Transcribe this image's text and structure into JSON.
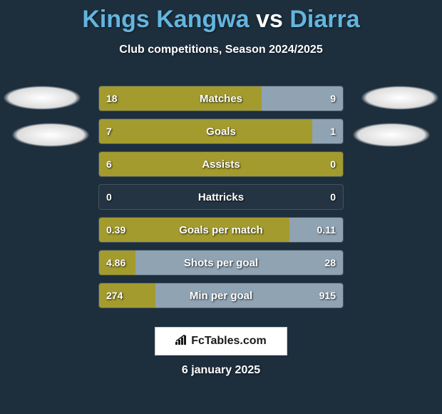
{
  "title": {
    "player1": "Kings Kangwa",
    "vs": "vs",
    "player2": "Diarra",
    "player1_color": "#63b5de",
    "vs_color": "#ffffff",
    "player2_color": "#63b5de",
    "fontsize": 34
  },
  "subtitle": "Club competitions, Season 2024/2025",
  "background_color": "#1d2e3d",
  "bar_color_left": "#a39b2e",
  "bar_color_right": "#8fa3b3",
  "bars": [
    {
      "label": "Matches",
      "left_val": "18",
      "right_val": "9",
      "left_pct": 66.7,
      "right_pct": 33.3
    },
    {
      "label": "Goals",
      "left_val": "7",
      "right_val": "1",
      "left_pct": 87.5,
      "right_pct": 12.5
    },
    {
      "label": "Assists",
      "left_val": "6",
      "right_val": "0",
      "left_pct": 100,
      "right_pct": 0
    },
    {
      "label": "Hattricks",
      "left_val": "0",
      "right_val": "0",
      "left_pct": 0,
      "right_pct": 0
    },
    {
      "label": "Goals per match",
      "left_val": "0.39",
      "right_val": "0.11",
      "left_pct": 78,
      "right_pct": 22
    },
    {
      "label": "Shots per goal",
      "left_val": "4.86",
      "right_val": "28",
      "left_pct": 14.8,
      "right_pct": 85.2
    },
    {
      "label": "Min per goal",
      "left_val": "274",
      "right_val": "915",
      "left_pct": 23,
      "right_pct": 77
    }
  ],
  "footer": {
    "logo_text": "FcTables.com",
    "date": "6 january 2025"
  }
}
